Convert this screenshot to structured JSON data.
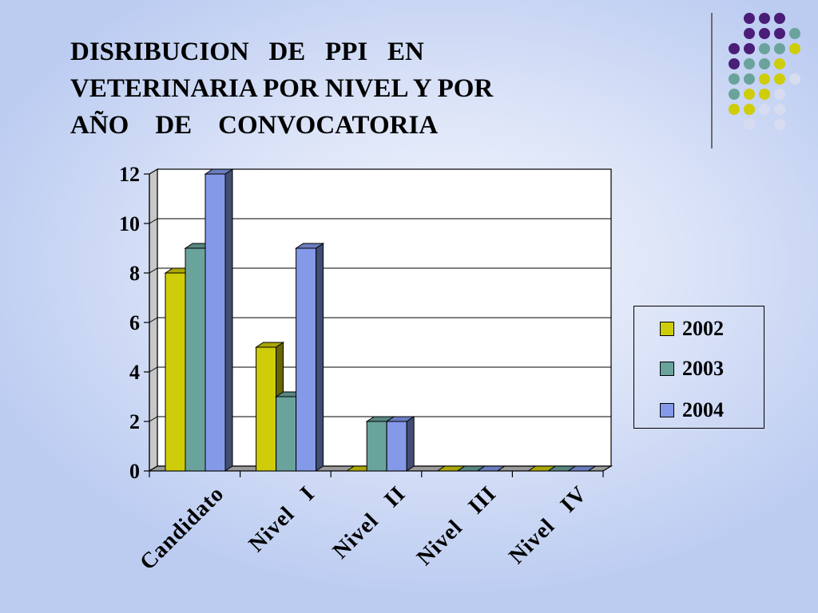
{
  "slide": {
    "title": "DISRIBUCION   DE   PPI   EN\nVETERINARIA POR NIVEL Y POR\nAÑO    DE    CONVOCATORIA"
  },
  "colors": {
    "2002": "#cfcc0a",
    "2003": "#6aa39c",
    "2004": "#8499e8",
    "dots_purple": "#4a1e78",
    "dots_teal": "#6aa39c",
    "dots_yellow": "#cfcc0a",
    "dots_light": "#d8dcf0"
  },
  "chart_data": {
    "type": "bar",
    "style": "3d-clustered-column",
    "categories": [
      "Candidato",
      "Nivel   I",
      "Nivel   II",
      "Nivel   III",
      "Nivel   IV"
    ],
    "series": [
      {
        "name": "2002",
        "values": [
          8,
          5,
          0,
          0,
          0
        ]
      },
      {
        "name": "2003",
        "values": [
          9,
          3,
          2,
          0,
          0
        ]
      },
      {
        "name": "2004",
        "values": [
          12,
          9,
          2,
          0,
          0
        ]
      }
    ],
    "yticks": [
      "0",
      "2",
      "4",
      "6",
      "8",
      "10",
      "12"
    ],
    "ylim": [
      0,
      12
    ],
    "grid": true,
    "legend_position": "right"
  }
}
